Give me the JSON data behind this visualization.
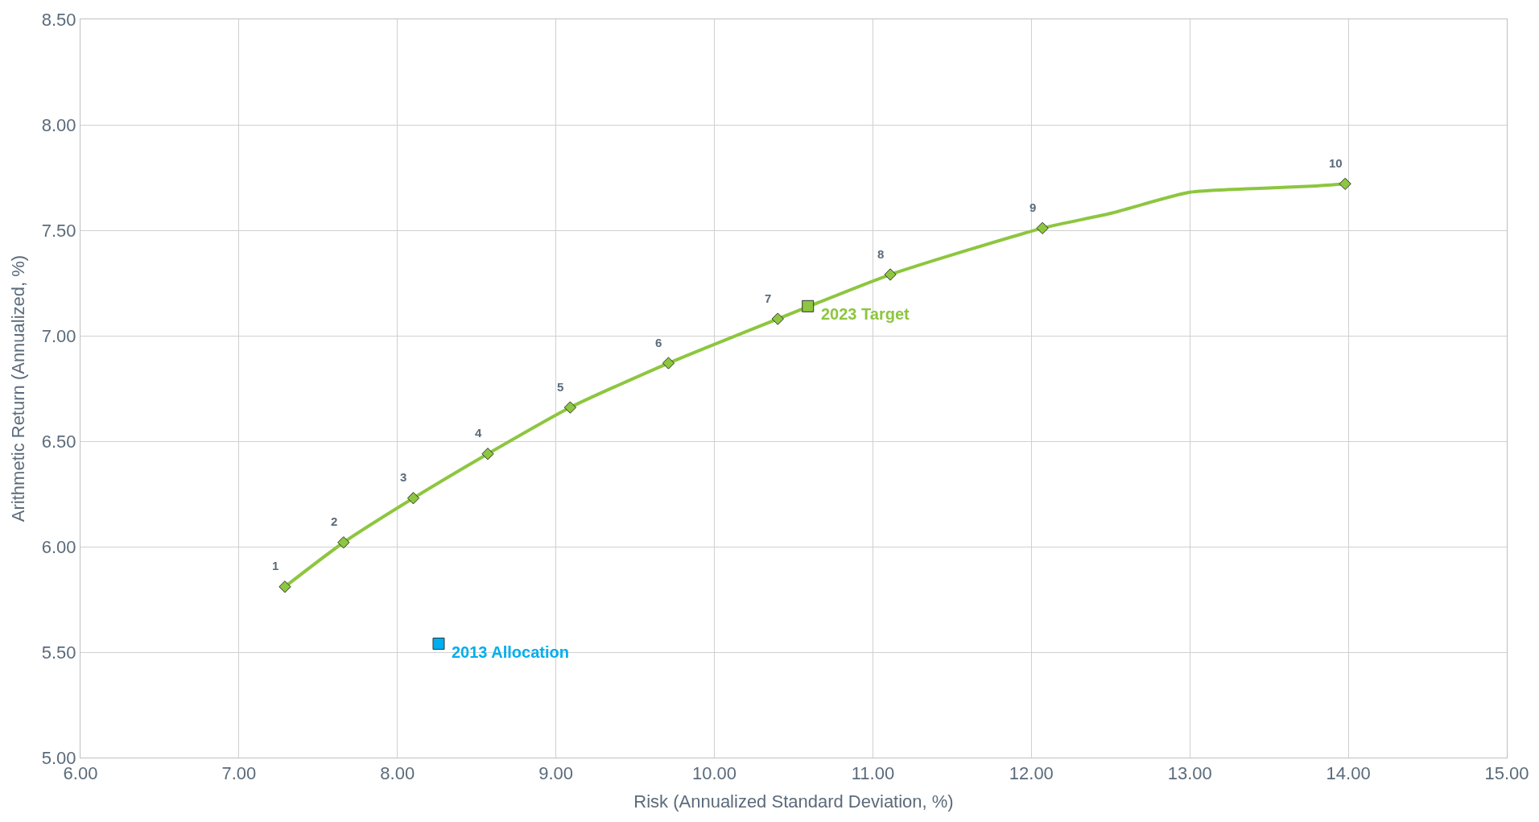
{
  "chart_data": {
    "type": "scatter",
    "xlabel": "Risk (Annualized Standard Deviation, %)",
    "ylabel": "Arithmetic Return (Annualized, %)",
    "xlim": [
      6,
      15
    ],
    "ylim": [
      5,
      8.5
    ],
    "xticks": [
      {
        "value": 6,
        "label": "6.00"
      },
      {
        "value": 7,
        "label": "7.00"
      },
      {
        "value": 8,
        "label": "8.00"
      },
      {
        "value": 9,
        "label": "9.00"
      },
      {
        "value": 10,
        "label": "10.00"
      },
      {
        "value": 11,
        "label": "11.00"
      },
      {
        "value": 12,
        "label": "12.00"
      },
      {
        "value": 13,
        "label": "13.00"
      },
      {
        "value": 14,
        "label": "14.00"
      },
      {
        "value": 15,
        "label": "15.00"
      }
    ],
    "yticks": [
      {
        "value": 5,
        "label": "5.00"
      },
      {
        "value": 5.5,
        "label": "5.50"
      },
      {
        "value": 6,
        "label": "6.00"
      },
      {
        "value": 6.5,
        "label": "6.50"
      },
      {
        "value": 7,
        "label": "7.00"
      },
      {
        "value": 7.5,
        "label": "7.50"
      },
      {
        "value": 8,
        "label": "8.00"
      },
      {
        "value": 8.5,
        "label": "8.50"
      }
    ],
    "grid": true,
    "series": [
      {
        "type": "line",
        "color": "#8dc63f",
        "marker": "none",
        "line_style": "solid",
        "x": [
          7.29,
          7.66,
          8.1,
          8.57,
          9.09,
          9.71,
          10.4,
          11.11,
          12.07,
          12.5,
          13.0,
          13.5,
          13.8,
          13.98
        ],
        "values": [
          5.81,
          6.02,
          6.23,
          6.44,
          6.66,
          6.87,
          7.08,
          7.29,
          7.51,
          7.58,
          7.68,
          7.7,
          7.71,
          7.72
        ]
      },
      {
        "color": "#8dc63f",
        "marker": "diamond",
        "x": [
          7.29,
          7.66,
          8.1,
          8.57,
          9.09,
          9.71,
          10.4,
          11.11,
          12.07,
          13.98
        ],
        "values": [
          5.81,
          6.02,
          6.23,
          6.44,
          6.66,
          6.87,
          7.08,
          7.29,
          7.51,
          7.72
        ]
      },
      {
        "color": "#8dc63f",
        "marker": "square",
        "x": [
          10.59
        ],
        "values": [
          7.14
        ]
      },
      {
        "color": "#00aeef",
        "marker": "square",
        "x": [
          8.26
        ],
        "values": [
          5.54
        ]
      }
    ],
    "annotations": [
      {
        "text": "1",
        "x": 7.29,
        "y": 5.81
      },
      {
        "text": "2",
        "x": 7.66,
        "y": 6.02
      },
      {
        "text": "3",
        "x": 8.1,
        "y": 6.23
      },
      {
        "text": "4",
        "x": 8.57,
        "y": 6.44
      },
      {
        "text": "5",
        "x": 9.09,
        "y": 6.66
      },
      {
        "text": "6",
        "x": 9.71,
        "y": 6.87
      },
      {
        "text": "7",
        "x": 10.4,
        "y": 7.08
      },
      {
        "text": "8",
        "x": 11.11,
        "y": 7.29
      },
      {
        "text": "9",
        "x": 12.07,
        "y": 7.51
      },
      {
        "text": "10",
        "x": 13.98,
        "y": 7.72
      },
      {
        "text": "2023 Target",
        "x": 10.59,
        "y": 7.14
      },
      {
        "text": "2013 Allocation",
        "x": 8.26,
        "y": 5.54
      }
    ]
  }
}
